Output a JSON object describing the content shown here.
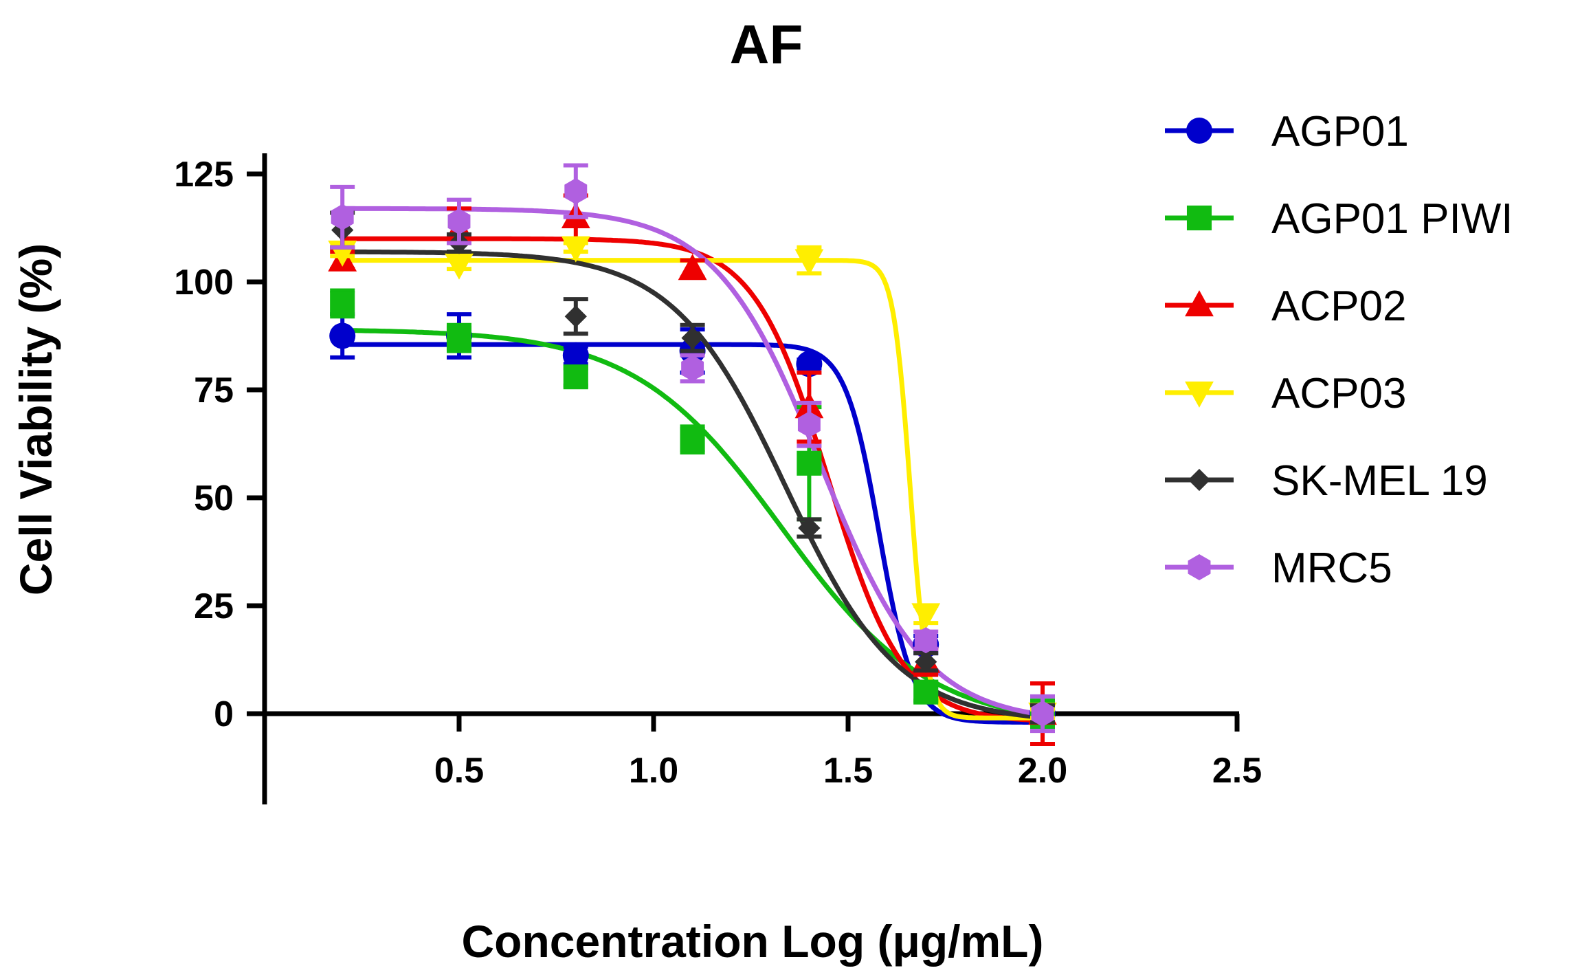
{
  "chart_data": {
    "type": "scatter",
    "title": "AF",
    "xlabel": "Concentration Log (μg/mL)",
    "ylabel": "Cell Viability (%)",
    "xlim": [
      0,
      2.5
    ],
    "ylim": [
      0,
      125
    ],
    "ylim_visible_bottom": -20,
    "xticks": [
      "0.5",
      "1.0",
      "1.5",
      "2.0",
      "2.5"
    ],
    "yticks": [
      "0",
      "25",
      "50",
      "75",
      "100",
      "125"
    ],
    "grid": false,
    "legend_position": "right",
    "fit": "sigmoidal dose-response",
    "series": [
      {
        "name": "AGP01",
        "color": "#0000cc",
        "marker": "circle",
        "points": [
          {
            "x": 0.2,
            "y": 87.5,
            "err": 5
          },
          {
            "x": 0.5,
            "y": 87.5,
            "err": 5
          },
          {
            "x": 0.8,
            "y": 83,
            "err": 2
          },
          {
            "x": 1.1,
            "y": 84,
            "err": 5
          },
          {
            "x": 1.4,
            "y": 81,
            "err": 1
          },
          {
            "x": 1.7,
            "y": 16,
            "err": 2
          },
          {
            "x": 2.0,
            "y": 0,
            "err": 3
          }
        ],
        "fit": {
          "top": 85.5,
          "bottom": -2,
          "logec50": 1.58,
          "hill": 10
        }
      },
      {
        "name": "AGP01 PIWI",
        "color": "#11bb11",
        "marker": "square",
        "points": [
          {
            "x": 0.2,
            "y": 95,
            "err": 3
          },
          {
            "x": 0.5,
            "y": 87,
            "err": 3
          },
          {
            "x": 0.8,
            "y": 78,
            "err": 2
          },
          {
            "x": 1.1,
            "y": 63.5,
            "err": 3
          },
          {
            "x": 1.4,
            "y": 58,
            "err": 13
          },
          {
            "x": 1.7,
            "y": 5,
            "err": 2
          },
          {
            "x": 2.0,
            "y": 0,
            "err": 3
          }
        ],
        "fit": {
          "top": 89,
          "bottom": -3,
          "logec50": 1.33,
          "hill": 2.3
        }
      },
      {
        "name": "ACP02",
        "color": "#ee0000",
        "marker": "triangle-up",
        "points": [
          {
            "x": 0.2,
            "y": 105,
            "err": 2
          },
          {
            "x": 0.5,
            "y": 112,
            "err": 5
          },
          {
            "x": 0.8,
            "y": 115,
            "err": 5
          },
          {
            "x": 1.1,
            "y": 103,
            "err": 2
          },
          {
            "x": 1.4,
            "y": 71,
            "err": 8
          },
          {
            "x": 1.7,
            "y": 12,
            "err": 3
          },
          {
            "x": 2.0,
            "y": 0,
            "err": 7
          }
        ],
        "fit": {
          "top": 110,
          "bottom": -2,
          "logec50": 1.45,
          "hill": 4.5
        }
      },
      {
        "name": "ACP03",
        "color": "#ffee00",
        "marker": "triangle-down",
        "points": [
          {
            "x": 0.2,
            "y": 107,
            "err": 1
          },
          {
            "x": 0.5,
            "y": 104,
            "err": 1
          },
          {
            "x": 0.8,
            "y": 108,
            "err": 1
          },
          {
            "x": 1.4,
            "y": 105,
            "err": 3
          },
          {
            "x": 1.7,
            "y": 23,
            "err": 2
          },
          {
            "x": 2.0,
            "y": 0,
            "err": 1
          }
        ],
        "fit": {
          "top": 105,
          "bottom": -1,
          "logec50": 1.66,
          "hill": 20
        }
      },
      {
        "name": "SK-MEL 19",
        "color": "#303030",
        "marker": "diamond",
        "points": [
          {
            "x": 0.2,
            "y": 112,
            "err": 4
          },
          {
            "x": 0.5,
            "y": 109,
            "err": 2
          },
          {
            "x": 0.8,
            "y": 92,
            "err": 4
          },
          {
            "x": 1.1,
            "y": 87,
            "err": 3
          },
          {
            "x": 1.4,
            "y": 43,
            "err": 2
          },
          {
            "x": 1.7,
            "y": 12,
            "err": 2
          },
          {
            "x": 2.0,
            "y": 0,
            "err": 2
          }
        ],
        "fit": {
          "top": 107,
          "bottom": -2,
          "logec50": 1.34,
          "hill": 3
        }
      },
      {
        "name": "MRC5",
        "color": "#b060e0",
        "marker": "hexagon",
        "points": [
          {
            "x": 0.2,
            "y": 115,
            "err": 7
          },
          {
            "x": 0.5,
            "y": 114,
            "err": 5
          },
          {
            "x": 0.8,
            "y": 121,
            "err": 6
          },
          {
            "x": 1.1,
            "y": 80,
            "err": 3
          },
          {
            "x": 1.4,
            "y": 67,
            "err": 5
          },
          {
            "x": 1.7,
            "y": 17,
            "err": 2
          },
          {
            "x": 2.0,
            "y": 0,
            "err": 4
          }
        ],
        "fit": {
          "top": 117,
          "bottom": -2,
          "logec50": 1.43,
          "hill": 3.2
        }
      }
    ]
  }
}
